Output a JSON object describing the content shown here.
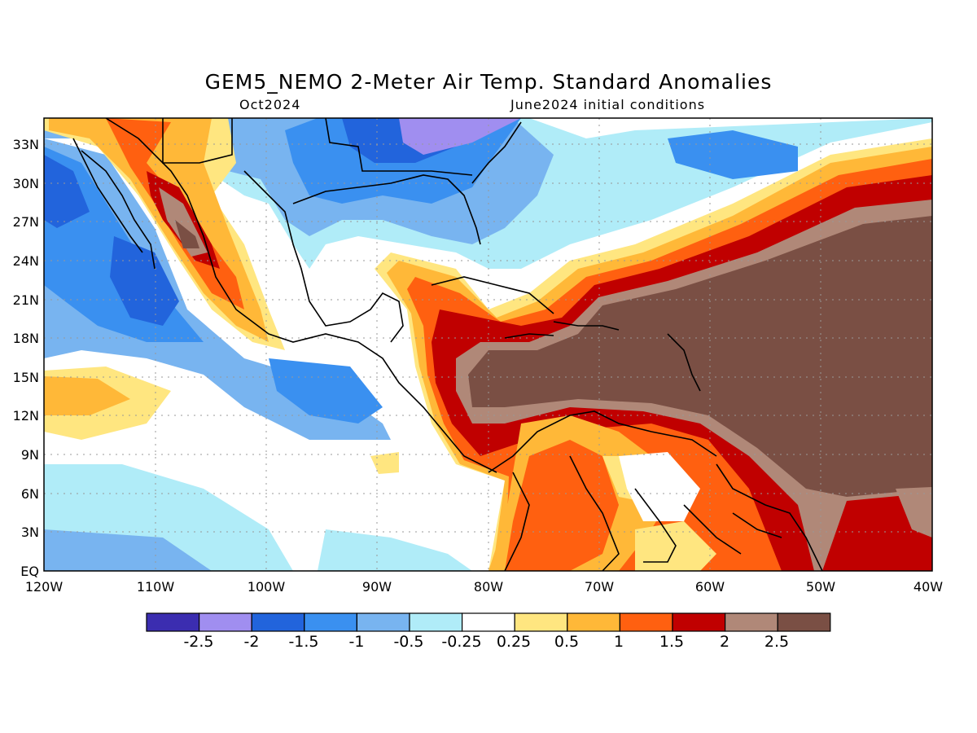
{
  "header": {
    "title": "GEM5_NEMO 2-Meter Air Temp. Standard Anomalies",
    "subtitle_left": "Oct2024",
    "subtitle_right": "June2024 initial conditions"
  },
  "axes": {
    "y_ticks": [
      "33N",
      "30N",
      "27N",
      "24N",
      "21N",
      "18N",
      "15N",
      "12N",
      "9N",
      "6N",
      "3N",
      "EQ"
    ],
    "x_ticks": [
      "120W",
      "110W",
      "100W",
      "90W",
      "80W",
      "70W",
      "60W",
      "50W",
      "40W"
    ],
    "lon_range": [
      -120,
      -40
    ],
    "lat_range": [
      0,
      35
    ]
  },
  "colorbar": {
    "labels": [
      "-2.5",
      "-2",
      "-1.5",
      "-1",
      "-0.5",
      "-0.25",
      "0.25",
      "0.5",
      "1",
      "1.5",
      "2",
      "2.5"
    ],
    "colors": [
      "#3b2db0",
      "#a08ef0",
      "#2264dc",
      "#3a90f0",
      "#78b4f0",
      "#b0ecf8",
      "#ffffff",
      "#ffe680",
      "#ffb838",
      "#ff6010",
      "#c00000",
      "#b08878",
      "#7a4f44"
    ]
  },
  "map_style": {
    "land_outline": "#000000",
    "grid": "#999999"
  }
}
